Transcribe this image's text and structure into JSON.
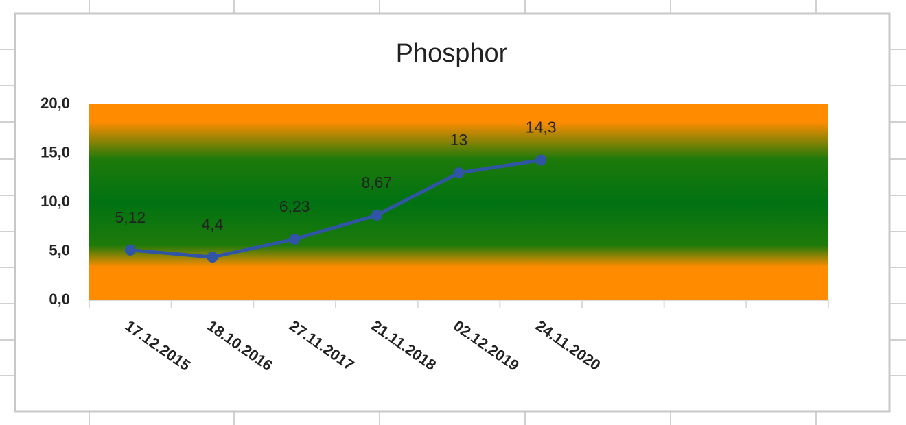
{
  "chart_data": {
    "type": "line",
    "title": "Phosphor",
    "categories": [
      "17.12.2015",
      "18.10.2016",
      "27.11.2017",
      "21.11.2018",
      "02.12.2019",
      "24.11.2020",
      null,
      null,
      null
    ],
    "series": [
      {
        "name": "Phosphor",
        "color": "#2f55a4",
        "values": [
          5.12,
          4.4,
          6.23,
          8.67,
          13,
          14.3,
          null,
          null,
          null
        ],
        "value_labels": [
          "5,12",
          "4,4",
          "6,23",
          "8,67",
          "13",
          "14,3",
          null,
          null,
          null
        ]
      }
    ],
    "ylim": [
      0,
      20
    ],
    "yticks": [
      {
        "value": 0,
        "label": "0,0"
      },
      {
        "value": 5,
        "label": "5,0"
      },
      {
        "value": 10,
        "label": "10,0"
      },
      {
        "value": 15,
        "label": "15,0"
      },
      {
        "value": 20,
        "label": "20,0"
      }
    ],
    "grid": false
  }
}
